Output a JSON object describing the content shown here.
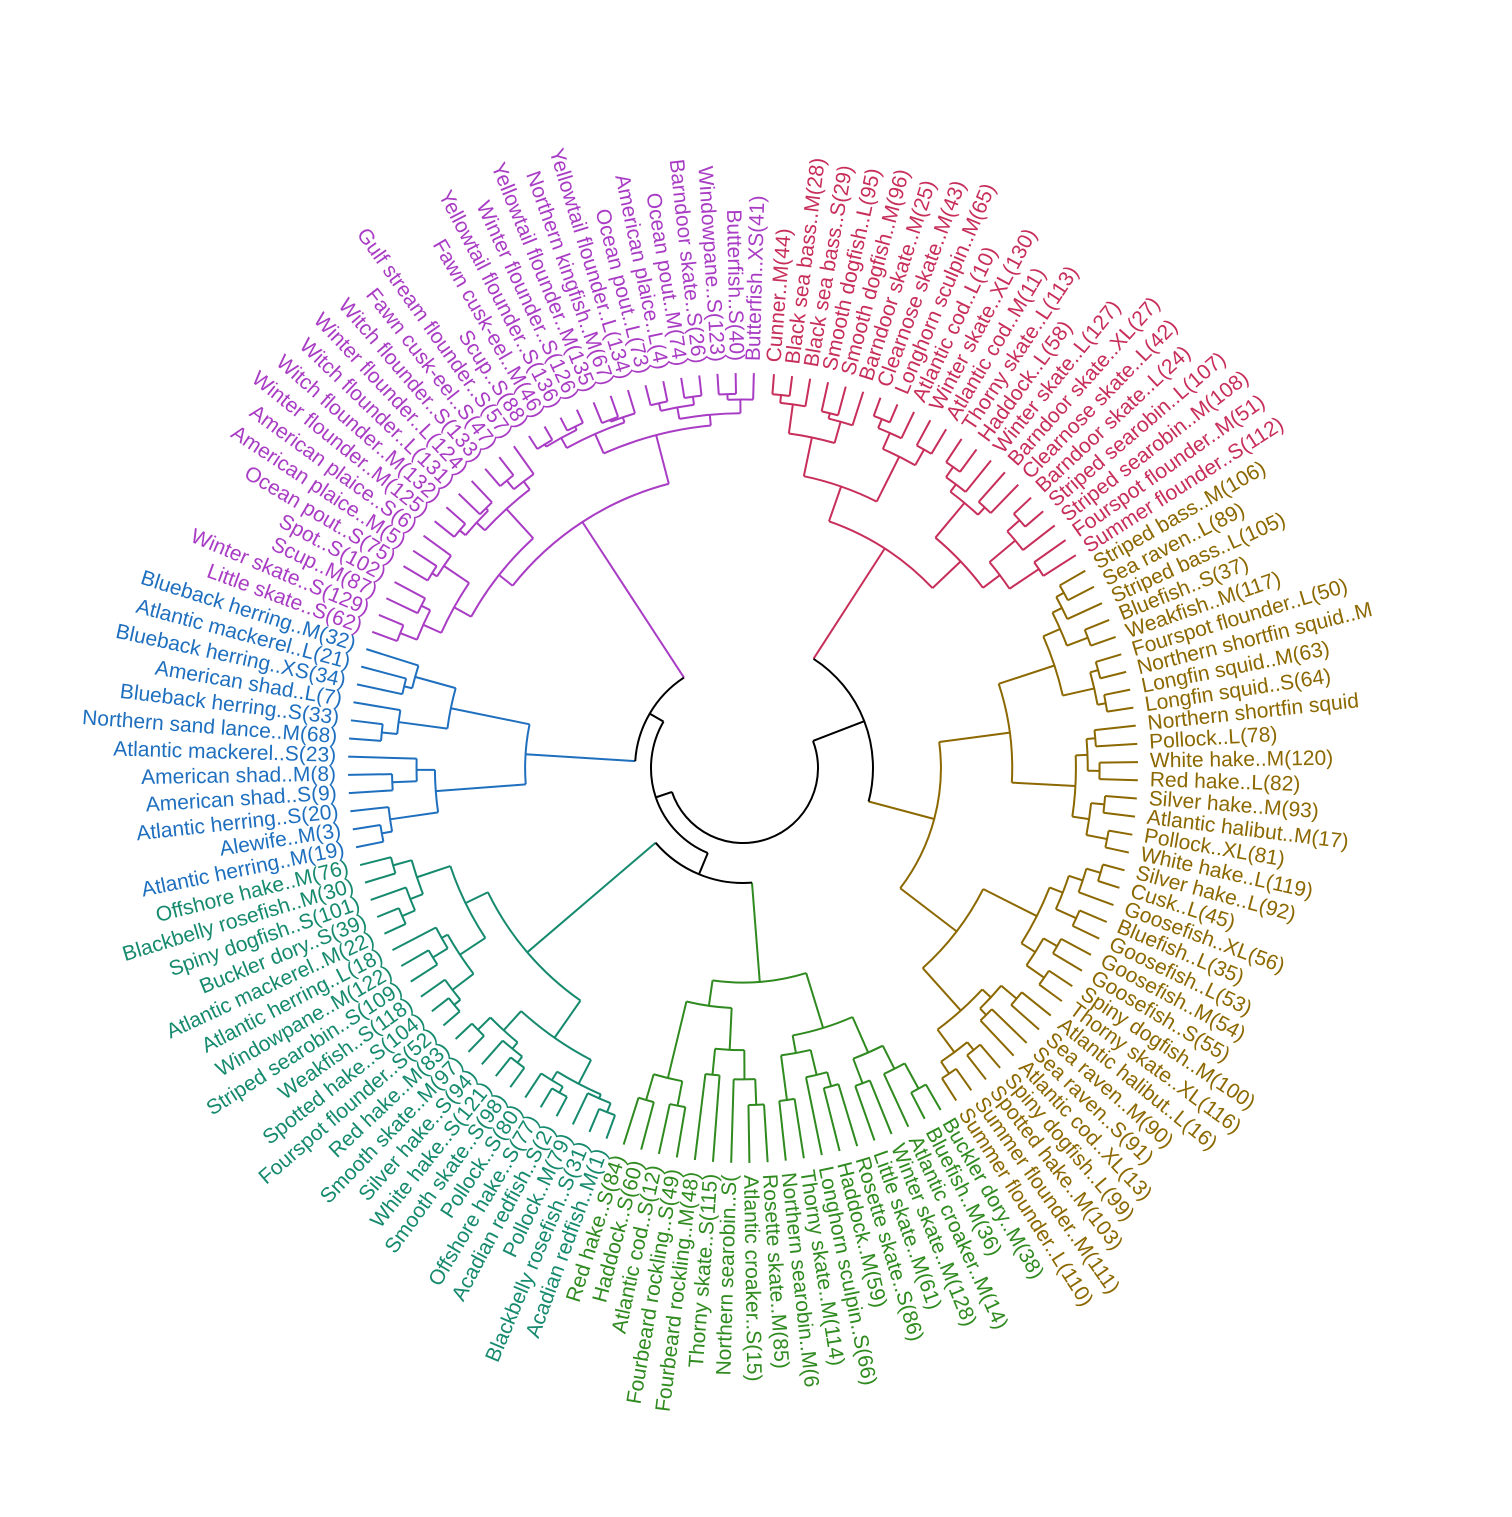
{
  "colors": {
    "root": "#000000",
    "cluster_1": "#c72e5a",
    "cluster_2": "#8c6800",
    "cluster_3": "#2f8a1f",
    "cluster_4": "#168a6e",
    "cluster_5": "#1f6fbf",
    "cluster_6": "#a93cc4"
  },
  "clusters": [
    {
      "id": "cluster_1",
      "labels": [
        "Cunner..M(44)",
        "Black sea bass..M(28)",
        "Black sea bass..S(29)",
        "Smooth dogfish..L(95)",
        "Smooth dogfish..M(96)",
        "Barndoor skate..M(25)",
        "Clearnose skate..M(43)",
        "Longhorn sculpin..M(65)",
        "Atlantic cod..L(10)",
        "Winter skate..XL(130)",
        "Atlantic cod..M(11)",
        "Thorny skate..L(113)",
        "Haddock..L(58)",
        "Winter skate..L(127)",
        "Barndoor skate..XL(27)",
        "Clearnose skate..L(42)",
        "Barndoor skate..L(24)",
        "Striped searobin..L(107)",
        "Striped searobin..M(108)",
        "Fourspot flounder..M(51)",
        "Summer flounder..S(112)"
      ]
    },
    {
      "id": "cluster_2",
      "labels": [
        "Striped bass..M(106)",
        "Sea raven..L(89)",
        "Striped bass..L(105)",
        "Bluefish..S(37)",
        "Weakfish..M(117)",
        "Fourspot flounder..L(50)",
        "Northern shortfin squid..M",
        "Longfin squid..M(63)",
        "Longfin squid..S(64)",
        "Northern shortfin squid",
        "Pollock..L(78)",
        "White hake..M(120)",
        "Red hake..L(82)",
        "Silver hake..M(93)",
        "Atlantic halibut..M(17)",
        "Pollock..XL(81)",
        "White hake..L(119)",
        "Silver hake..L(92)",
        "Cusk..L(45)",
        "Goosefish..XL(56)",
        "Bluefish..L(35)",
        "Goosefish..L(53)",
        "Goosefish..M(54)",
        "Goosefish..S(55)",
        "Spiny dogfish..M(100)",
        "Thorny skate..XL(116)",
        "Atlantic halibut..L(16)",
        "Sea raven..M(90)",
        "Sea raven..S(91)",
        "Atlantic cod..XL(13)",
        "Spiny dogfish..L(99)",
        "Spotted hake..M(103)",
        "Summer flounder..M(111)",
        "Summer flounder..L(110)"
      ]
    },
    {
      "id": "cluster_3",
      "labels": [
        "Buckler dory..M(38)",
        "Bluefish..M(36)",
        "Atlantic croaker..M(14)",
        "Winter skate..M(128)",
        "Little skate..M(61)",
        "Rosette skate..S(86)",
        "Haddock..M(59)",
        "Longhorn sculpin..S(66)",
        "Thorny skate..M(114)",
        "Northern searobin..M(6",
        "Rosette skate..M(85)",
        "Atlantic croaker..S(15)",
        "Northern searobin..S(",
        "Thorny skate..S(115)",
        "Fourbeard rockling..M(48)",
        "Fourbeard rockling..S(49)",
        "Atlantic cod..S(12)",
        "Haddock..S(60)",
        "Red hake..S(84)"
      ]
    },
    {
      "id": "cluster_4",
      "labels": [
        "Acadian redfish..M(1)",
        "Blackbelly rosefish..S(31)",
        "Pollock..M(79)",
        "Acadian redfish..S(2)",
        "Offshore hake..S(77)",
        "Pollock..S(80)",
        "Smooth skate..S(98)",
        "White hake..S(121)",
        "Silver hake..S(94)",
        "Smooth skate..M(97)",
        "Red hake..M(83)",
        "Fourspot flounder..S(52)",
        "Spotted hake..S(104)",
        "Weakfish..S(118)",
        "Striped searobin..S(109)",
        "Windowpane..M(122)",
        "Atlantic herring..L(18)",
        "Atlantic mackerel..M(22)",
        "Buckler dory..S(39)",
        "Spiny dogfish..S(101)",
        "Blackbelly rosefish..M(30)",
        "Offshore hake..M(76)"
      ]
    },
    {
      "id": "cluster_5",
      "labels": [
        "Atlantic herring..M(19)",
        "Alewife..M(3)",
        "Atlantic herring..S(20)",
        "American shad..S(9)",
        "American shad..M(8)",
        "Atlantic mackerel..S(23)",
        "Northern sand lance..M(68)",
        "Blueback herring..S(33)",
        "American shad..L(7)",
        "Blueback herring..XS(34)",
        "Atlantic mackerel..L(21)",
        "Blueback herring..M(32)"
      ]
    },
    {
      "id": "cluster_6",
      "labels": [
        "Little skate..S(62)",
        "Winter skate..S(129)",
        "Scup..M(87)",
        "Spot..S(102)",
        "Ocean pout..S(75)",
        "American plaice..M(5)",
        "American plaice..S(6)",
        "Winter flounder..M(125)",
        "Witch flounder..M(132)",
        "Witch flounder..L(131)",
        "Winter flounder..L(124)",
        "Witch flounder..S(133)",
        "Fawn cusk-eel..S(47)",
        "Gulf stream flounder..S(57)",
        "Scup..S(88)",
        "Fawn cusk-eel..M(46)",
        "Yellowtail flounder..S(136)",
        "Winter flounder..S(126)",
        "Yellowtail flounder..M(135)",
        "Northern kingfish..M(67)",
        "Yellowtail flounder..L(134)",
        "Ocean pout..L(73)",
        "American plaice..L(4)",
        "Ocean pout..M(74)",
        "Barndoor skate..S(26)",
        "Windowpane..S(123)",
        "Butterfish..S(40)",
        "Butterfish..XS(41)"
      ]
    }
  ]
}
